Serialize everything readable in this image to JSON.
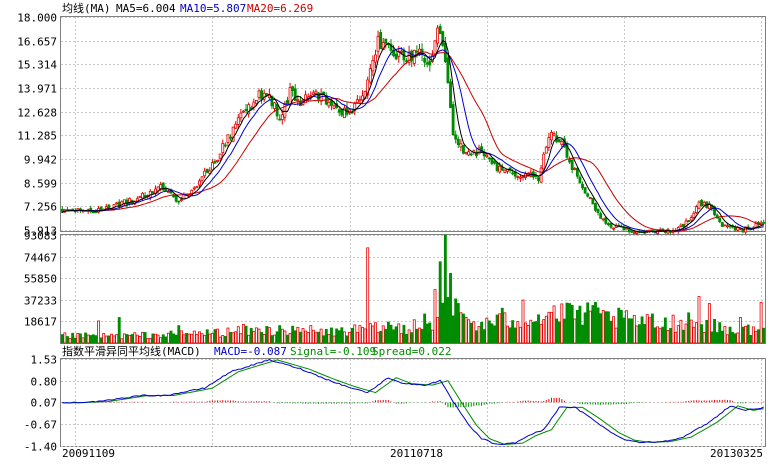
{
  "colors": {
    "up": "#e60000",
    "down": "#008c00",
    "ma5": "#000000",
    "ma10": "#0000cc",
    "ma20": "#cc0000",
    "macd": "#0000cc",
    "signal": "#008c00",
    "grid": "#c8c8c8",
    "frame": "#808080"
  },
  "chart_data": [
    {
      "type": "candlestick",
      "title": "均线(MA)",
      "indicators": [
        {
          "name": "MA5",
          "value": "6.004",
          "text": "MA5=6.004"
        },
        {
          "name": "MA10",
          "value": "5.807",
          "text": "MA10=5.807"
        },
        {
          "name": "MA20",
          "value": "6.269",
          "text": "MA20=6.269"
        }
      ],
      "ylim": [
        5.913,
        18.0
      ],
      "y_ticks": [
        "18.000",
        "16.657",
        "15.314",
        "13.971",
        "12.628",
        "11.285",
        "9.942",
        "8.599",
        "7.256",
        "5.913"
      ],
      "x_tick_labels": [
        "20091109",
        "20110718",
        "20130325"
      ],
      "anchors": [
        [
          0,
          7.0
        ],
        [
          10,
          6.95
        ],
        [
          20,
          7.3
        ],
        [
          28,
          7.6
        ],
        [
          38,
          8.3
        ],
        [
          45,
          7.6
        ],
        [
          52,
          8.5
        ],
        [
          58,
          9.6
        ],
        [
          66,
          11.6
        ],
        [
          72,
          12.9
        ],
        [
          78,
          13.8
        ],
        [
          84,
          12.4
        ],
        [
          88,
          13.7
        ],
        [
          92,
          13.3
        ],
        [
          96,
          13.8
        ],
        [
          102,
          13.2
        ],
        [
          106,
          12.8
        ],
        [
          110,
          12.5
        ],
        [
          116,
          13.6
        ],
        [
          122,
          16.6
        ],
        [
          128,
          15.8
        ],
        [
          134,
          15.7
        ],
        [
          138,
          16.2
        ],
        [
          142,
          15.4
        ],
        [
          145,
          17.8
        ],
        [
          148,
          15.8
        ],
        [
          151,
          11.5
        ],
        [
          156,
          10.2
        ],
        [
          162,
          10.4
        ],
        [
          168,
          9.5
        ],
        [
          174,
          9.0
        ],
        [
          180,
          9.2
        ],
        [
          184,
          8.9
        ],
        [
          188,
          11.3
        ],
        [
          192,
          11.0
        ],
        [
          198,
          9.2
        ],
        [
          204,
          7.7
        ],
        [
          210,
          6.2
        ],
        [
          216,
          6.1
        ],
        [
          222,
          5.75
        ],
        [
          228,
          5.8
        ],
        [
          234,
          5.85
        ],
        [
          240,
          6.1
        ],
        [
          246,
          7.4
        ],
        [
          250,
          7.3
        ],
        [
          254,
          6.3
        ],
        [
          258,
          6.0
        ],
        [
          262,
          5.9
        ],
        [
          267,
          6.1
        ],
        [
          271,
          6.25
        ]
      ],
      "candle_count": 272
    },
    {
      "type": "bar",
      "title": "",
      "ylim": [
        0,
        93083
      ],
      "y_ticks": [
        "93083",
        "74467",
        "55850",
        "37233",
        "18617"
      ],
      "spikes": [
        [
          14,
          19000
        ],
        [
          22,
          22000
        ],
        [
          45,
          15000
        ],
        [
          70,
          16000
        ],
        [
          84,
          15000
        ],
        [
          96,
          15000
        ],
        [
          118,
          82000
        ],
        [
          126,
          18000
        ],
        [
          136,
          20000
        ],
        [
          140,
          25000
        ],
        [
          144,
          46000
        ],
        [
          146,
          70000
        ],
        [
          148,
          93000
        ],
        [
          150,
          60000
        ],
        [
          152,
          38000
        ],
        [
          155,
          25000
        ],
        [
          170,
          30000
        ],
        [
          178,
          37000
        ],
        [
          190,
          32000
        ],
        [
          196,
          34000
        ],
        [
          202,
          26000
        ],
        [
          206,
          35000
        ],
        [
          210,
          27000
        ],
        [
          215,
          30000
        ],
        [
          228,
          25000
        ],
        [
          236,
          24000
        ],
        [
          242,
          26000
        ],
        [
          246,
          40000
        ],
        [
          250,
          34000
        ],
        [
          262,
          22000
        ],
        [
          270,
          35000
        ]
      ],
      "anchors": [
        [
          0,
          6000
        ],
        [
          20,
          6000
        ],
        [
          40,
          7000
        ],
        [
          60,
          9000
        ],
        [
          80,
          11000
        ],
        [
          100,
          9000
        ],
        [
          120,
          12000
        ],
        [
          140,
          14000
        ],
        [
          150,
          30000
        ],
        [
          160,
          15000
        ],
        [
          180,
          22000
        ],
        [
          200,
          25000
        ],
        [
          215,
          20000
        ],
        [
          230,
          16000
        ],
        [
          245,
          17000
        ],
        [
          260,
          11000
        ],
        [
          271,
          12000
        ]
      ]
    },
    {
      "type": "line",
      "title": "指数平滑异同平均线(MACD)",
      "indicators": [
        {
          "name": "MACD",
          "value": "-0.087",
          "text": "MACD=-0.087"
        },
        {
          "name": "Signal",
          "value": "-0.109",
          "text": "Signal=-0.109"
        },
        {
          "name": "Spread",
          "value": "0.022",
          "text": "Spread=0.022"
        }
      ],
      "ylim": [
        -1.4,
        1.53
      ],
      "y_ticks": [
        "1.53",
        "0.80",
        "0.07",
        "-0.67",
        "-1.40"
      ],
      "macd_anchors": [
        [
          0,
          0.05
        ],
        [
          15,
          0.1
        ],
        [
          30,
          0.3
        ],
        [
          40,
          0.3
        ],
        [
          55,
          0.55
        ],
        [
          65,
          1.1
        ],
        [
          80,
          1.5
        ],
        [
          92,
          1.2
        ],
        [
          102,
          0.85
        ],
        [
          110,
          0.6
        ],
        [
          118,
          0.4
        ],
        [
          126,
          0.9
        ],
        [
          132,
          0.7
        ],
        [
          140,
          0.65
        ],
        [
          146,
          0.8
        ],
        [
          151,
          0.1
        ],
        [
          157,
          -0.7
        ],
        [
          162,
          -1.15
        ],
        [
          168,
          -1.35
        ],
        [
          175,
          -1.3
        ],
        [
          180,
          -1.05
        ],
        [
          186,
          -0.85
        ],
        [
          192,
          -0.1
        ],
        [
          198,
          -0.1
        ],
        [
          205,
          -0.5
        ],
        [
          212,
          -0.95
        ],
        [
          218,
          -1.2
        ],
        [
          224,
          -1.28
        ],
        [
          232,
          -1.25
        ],
        [
          240,
          -1.1
        ],
        [
          250,
          -0.6
        ],
        [
          258,
          -0.05
        ],
        [
          264,
          -0.2
        ],
        [
          271,
          -0.1
        ]
      ]
    }
  ]
}
